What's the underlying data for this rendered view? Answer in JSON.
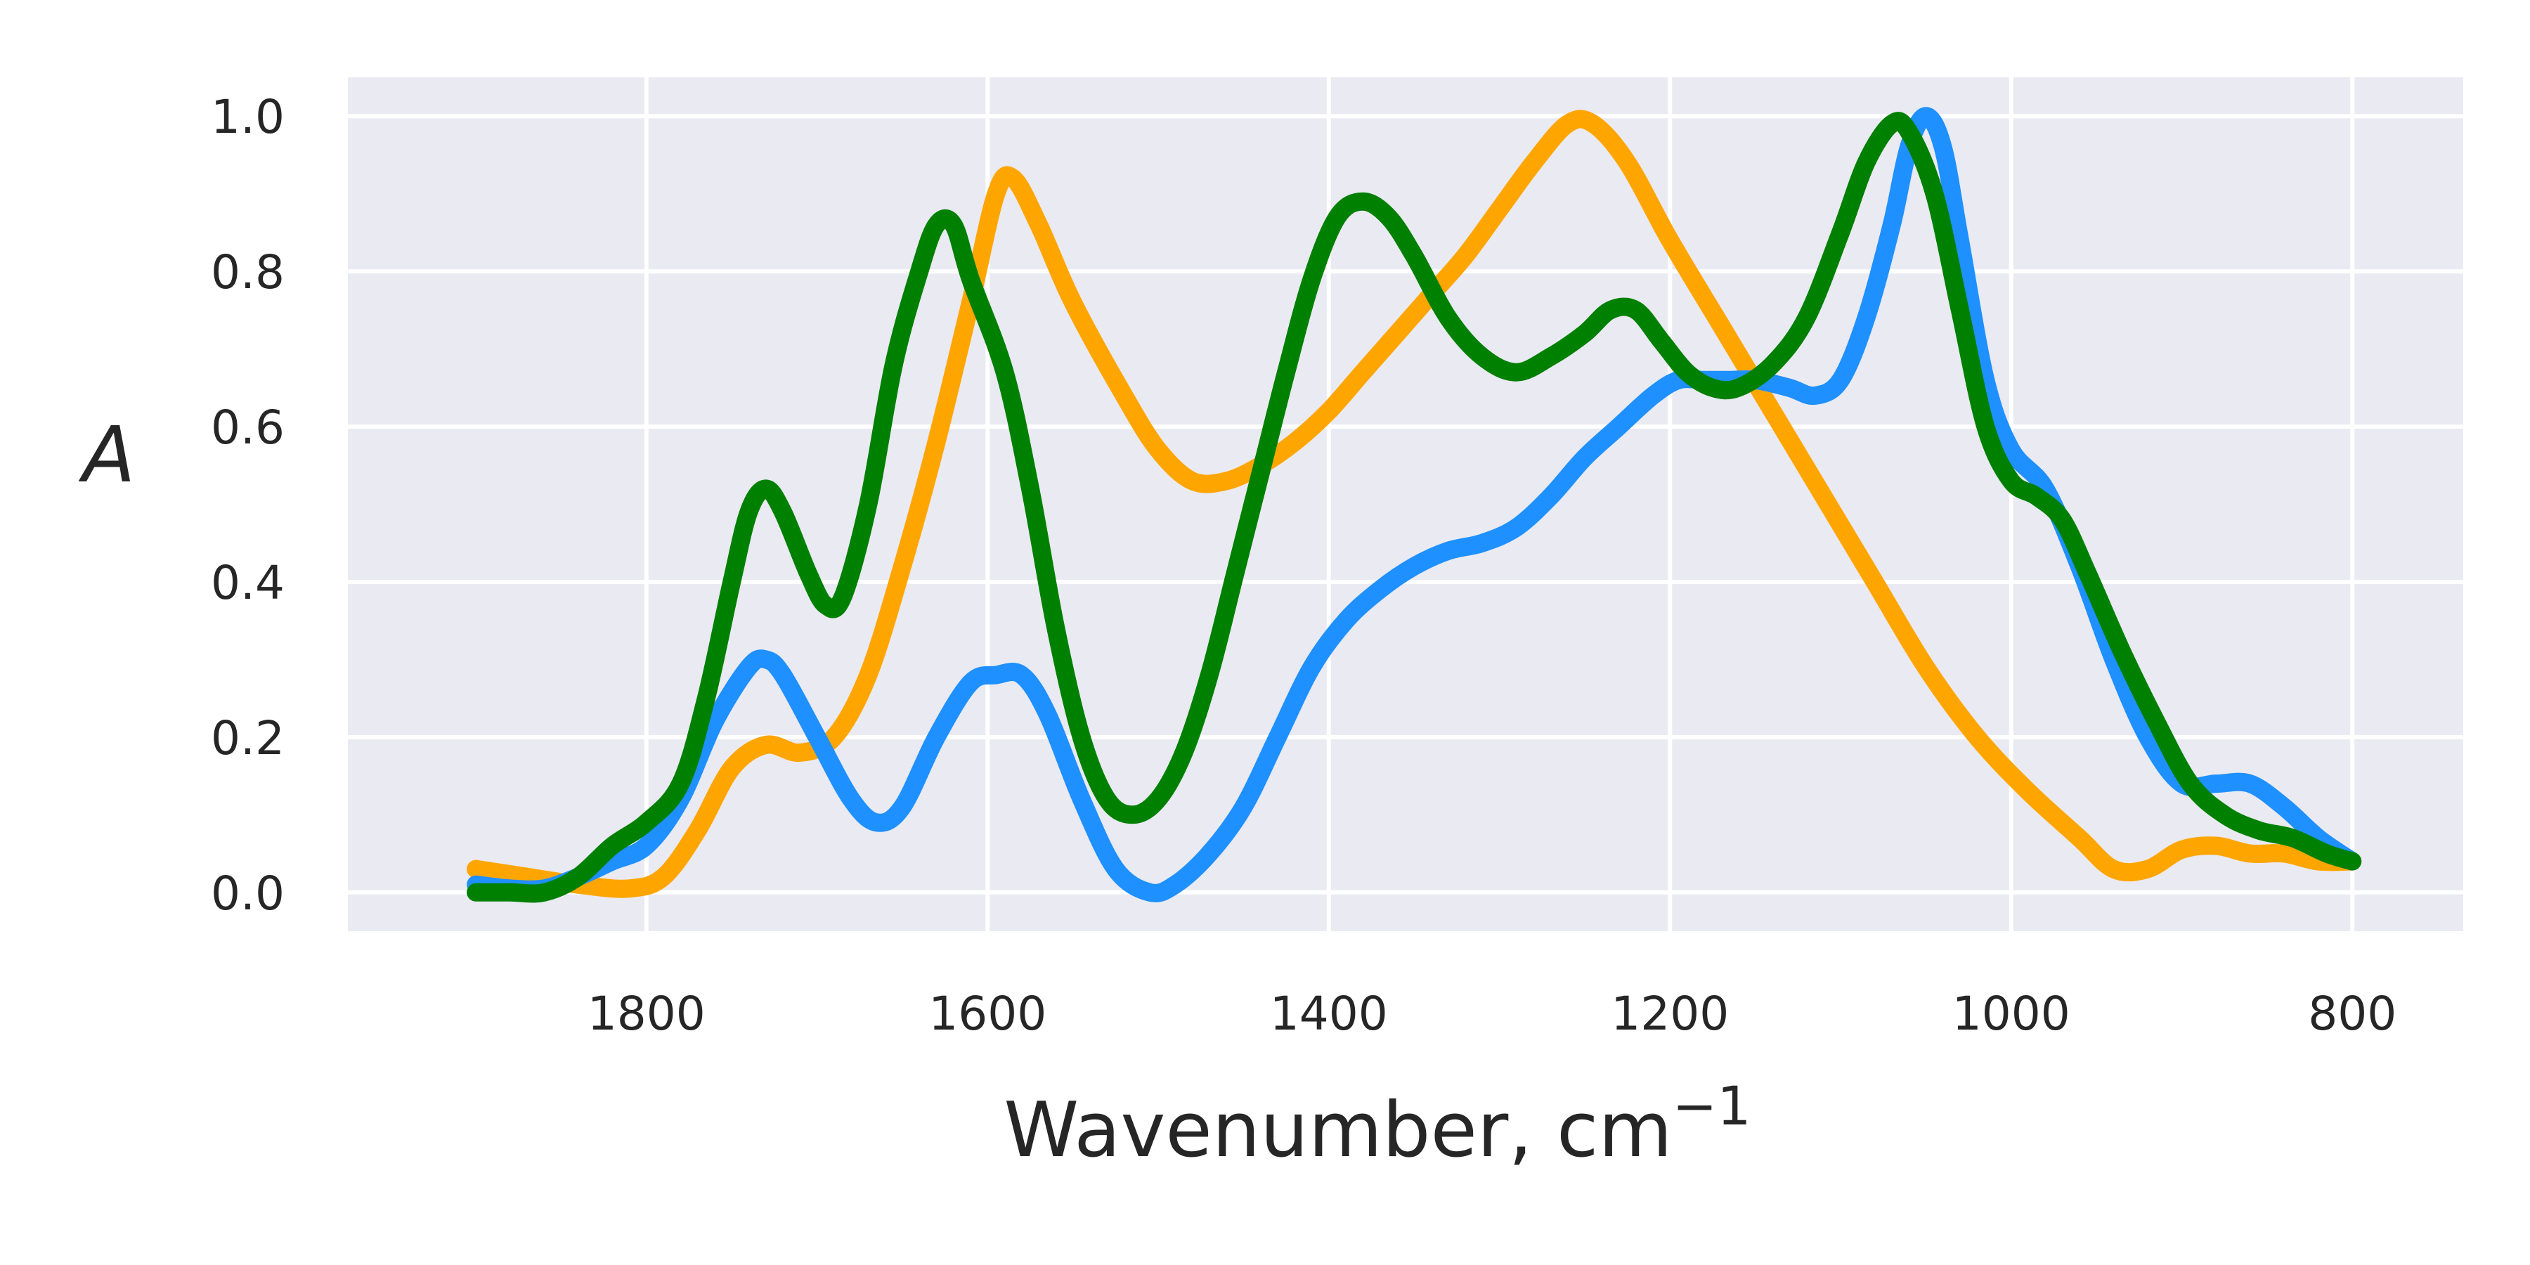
{
  "chart_data": {
    "type": "line",
    "title": "",
    "xlabel": "Wavenumber, cm",
    "xlabel_superscript": "−1",
    "ylabel": "A",
    "xlim": [
      1975,
      735
    ],
    "ylim": [
      -0.05,
      1.05
    ],
    "x_reversed": true,
    "grid": true,
    "x_ticks": [
      1800,
      1600,
      1400,
      1200,
      1000,
      800
    ],
    "y_ticks": [
      0.0,
      0.2,
      0.4,
      0.6,
      0.8,
      1.0
    ],
    "x_tick_labels": [
      "1800",
      "1600",
      "1400",
      "1200",
      "1000",
      "800"
    ],
    "y_tick_labels": [
      "0.0",
      "0.2",
      "0.4",
      "0.6",
      "0.8",
      "1.0"
    ],
    "colors": {
      "background": "#eaeaf2",
      "grid": "#ffffff",
      "text": "#262626"
    },
    "series": [
      {
        "color": "#ffa500",
        "points": [
          [
            1900,
            0.03
          ],
          [
            1870,
            0.02
          ],
          [
            1840,
            0.01
          ],
          [
            1810,
            0.005
          ],
          [
            1790,
            0.02
          ],
          [
            1770,
            0.08
          ],
          [
            1750,
            0.16
          ],
          [
            1730,
            0.19
          ],
          [
            1710,
            0.18
          ],
          [
            1690,
            0.2
          ],
          [
            1670,
            0.28
          ],
          [
            1650,
            0.42
          ],
          [
            1630,
            0.58
          ],
          [
            1610,
            0.76
          ],
          [
            1595,
            0.9
          ],
          [
            1585,
            0.92
          ],
          [
            1570,
            0.86
          ],
          [
            1550,
            0.76
          ],
          [
            1520,
            0.64
          ],
          [
            1500,
            0.57
          ],
          [
            1480,
            0.53
          ],
          [
            1460,
            0.53
          ],
          [
            1440,
            0.55
          ],
          [
            1420,
            0.58
          ],
          [
            1400,
            0.62
          ],
          [
            1380,
            0.67
          ],
          [
            1360,
            0.72
          ],
          [
            1340,
            0.77
          ],
          [
            1320,
            0.82
          ],
          [
            1300,
            0.88
          ],
          [
            1280,
            0.94
          ],
          [
            1260,
            0.99
          ],
          [
            1245,
            0.99
          ],
          [
            1225,
            0.94
          ],
          [
            1200,
            0.84
          ],
          [
            1170,
            0.73
          ],
          [
            1140,
            0.62
          ],
          [
            1110,
            0.51
          ],
          [
            1080,
            0.4
          ],
          [
            1050,
            0.29
          ],
          [
            1020,
            0.2
          ],
          [
            990,
            0.13
          ],
          [
            960,
            0.07
          ],
          [
            940,
            0.03
          ],
          [
            920,
            0.03
          ],
          [
            900,
            0.055
          ],
          [
            880,
            0.06
          ],
          [
            860,
            0.05
          ],
          [
            840,
            0.05
          ],
          [
            820,
            0.04
          ],
          [
            800,
            0.04
          ]
        ]
      },
      {
        "color": "#1e90ff",
        "points": [
          [
            1900,
            0.01
          ],
          [
            1880,
            0.005
          ],
          [
            1860,
            0.005
          ],
          [
            1840,
            0.02
          ],
          [
            1820,
            0.04
          ],
          [
            1800,
            0.06
          ],
          [
            1780,
            0.12
          ],
          [
            1760,
            0.22
          ],
          [
            1740,
            0.29
          ],
          [
            1730,
            0.3
          ],
          [
            1720,
            0.28
          ],
          [
            1700,
            0.2
          ],
          [
            1680,
            0.12
          ],
          [
            1665,
            0.09
          ],
          [
            1650,
            0.11
          ],
          [
            1630,
            0.2
          ],
          [
            1610,
            0.27
          ],
          [
            1595,
            0.28
          ],
          [
            1580,
            0.28
          ],
          [
            1565,
            0.23
          ],
          [
            1545,
            0.12
          ],
          [
            1525,
            0.03
          ],
          [
            1505,
            0.0
          ],
          [
            1490,
            0.01
          ],
          [
            1470,
            0.05
          ],
          [
            1450,
            0.11
          ],
          [
            1430,
            0.2
          ],
          [
            1410,
            0.29
          ],
          [
            1390,
            0.35
          ],
          [
            1370,
            0.39
          ],
          [
            1350,
            0.42
          ],
          [
            1330,
            0.44
          ],
          [
            1310,
            0.45
          ],
          [
            1290,
            0.47
          ],
          [
            1270,
            0.51
          ],
          [
            1250,
            0.56
          ],
          [
            1230,
            0.6
          ],
          [
            1210,
            0.64
          ],
          [
            1195,
            0.66
          ],
          [
            1180,
            0.66
          ],
          [
            1165,
            0.66
          ],
          [
            1150,
            0.66
          ],
          [
            1130,
            0.65
          ],
          [
            1115,
            0.64
          ],
          [
            1100,
            0.66
          ],
          [
            1085,
            0.74
          ],
          [
            1070,
            0.86
          ],
          [
            1060,
            0.96
          ],
          [
            1050,
            1.0
          ],
          [
            1040,
            0.96
          ],
          [
            1030,
            0.84
          ],
          [
            1015,
            0.66
          ],
          [
            1000,
            0.57
          ],
          [
            980,
            0.52
          ],
          [
            960,
            0.42
          ],
          [
            940,
            0.3
          ],
          [
            920,
            0.2
          ],
          [
            900,
            0.14
          ],
          [
            880,
            0.14
          ],
          [
            860,
            0.14
          ],
          [
            840,
            0.11
          ],
          [
            820,
            0.07
          ],
          [
            800,
            0.04
          ]
        ]
      },
      {
        "color": "#008000",
        "points": [
          [
            1900,
            0.0
          ],
          [
            1880,
            0.0
          ],
          [
            1860,
            0.0
          ],
          [
            1840,
            0.02
          ],
          [
            1820,
            0.06
          ],
          [
            1800,
            0.09
          ],
          [
            1780,
            0.14
          ],
          [
            1765,
            0.25
          ],
          [
            1750,
            0.4
          ],
          [
            1740,
            0.49
          ],
          [
            1730,
            0.52
          ],
          [
            1720,
            0.49
          ],
          [
            1705,
            0.41
          ],
          [
            1695,
            0.37
          ],
          [
            1685,
            0.38
          ],
          [
            1670,
            0.5
          ],
          [
            1655,
            0.68
          ],
          [
            1640,
            0.8
          ],
          [
            1630,
            0.86
          ],
          [
            1620,
            0.86
          ],
          [
            1610,
            0.79
          ],
          [
            1590,
            0.67
          ],
          [
            1575,
            0.52
          ],
          [
            1560,
            0.34
          ],
          [
            1545,
            0.2
          ],
          [
            1530,
            0.12
          ],
          [
            1515,
            0.1
          ],
          [
            1500,
            0.12
          ],
          [
            1485,
            0.18
          ],
          [
            1470,
            0.28
          ],
          [
            1455,
            0.41
          ],
          [
            1440,
            0.54
          ],
          [
            1425,
            0.67
          ],
          [
            1410,
            0.79
          ],
          [
            1395,
            0.87
          ],
          [
            1380,
            0.89
          ],
          [
            1365,
            0.87
          ],
          [
            1350,
            0.82
          ],
          [
            1330,
            0.74
          ],
          [
            1310,
            0.69
          ],
          [
            1290,
            0.67
          ],
          [
            1270,
            0.69
          ],
          [
            1250,
            0.72
          ],
          [
            1235,
            0.75
          ],
          [
            1220,
            0.75
          ],
          [
            1205,
            0.71
          ],
          [
            1190,
            0.67
          ],
          [
            1175,
            0.65
          ],
          [
            1160,
            0.65
          ],
          [
            1140,
            0.68
          ],
          [
            1120,
            0.74
          ],
          [
            1100,
            0.85
          ],
          [
            1085,
            0.94
          ],
          [
            1070,
            0.99
          ],
          [
            1060,
            0.98
          ],
          [
            1045,
            0.9
          ],
          [
            1030,
            0.75
          ],
          [
            1015,
            0.6
          ],
          [
            1000,
            0.53
          ],
          [
            985,
            0.51
          ],
          [
            970,
            0.48
          ],
          [
            955,
            0.41
          ],
          [
            935,
            0.31
          ],
          [
            915,
            0.22
          ],
          [
            895,
            0.14
          ],
          [
            875,
            0.1
          ],
          [
            855,
            0.08
          ],
          [
            835,
            0.07
          ],
          [
            815,
            0.05
          ],
          [
            800,
            0.04
          ]
        ]
      }
    ]
  }
}
